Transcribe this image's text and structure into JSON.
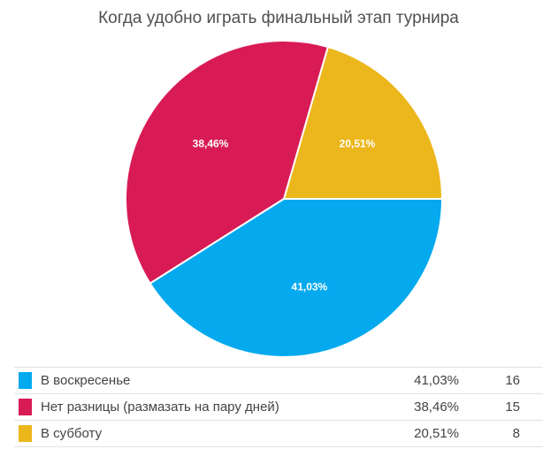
{
  "chart_data": {
    "type": "pie",
    "title": "Когда удобно играть финальный этап турнира",
    "slices": [
      {
        "label": "В воскресенье",
        "value": 41.03,
        "value_label": "41,03%",
        "count": "16",
        "color": "#04a9ee"
      },
      {
        "label": "Нет разницы (размазать на пару дней)",
        "value": 38.46,
        "value_label": "38,46%",
        "count": "15",
        "color": "#d81b55"
      },
      {
        "label": "В субботу",
        "value": 20.51,
        "value_label": "20,51%",
        "count": "8",
        "color": "#ecb71c"
      }
    ],
    "legend_position": "bottom"
  }
}
